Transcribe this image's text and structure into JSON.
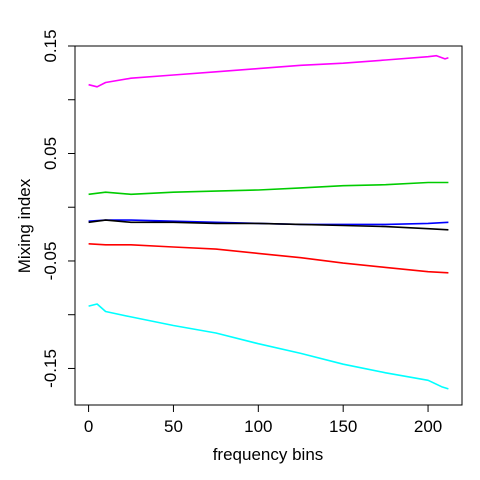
{
  "chart_data": {
    "type": "line",
    "title": "",
    "xlabel": "frequency bins",
    "ylabel": "Mixing index",
    "xlim": [
      -8,
      220
    ],
    "ylim": [
      -0.184,
      0.15
    ],
    "x_ticks": [
      0,
      50,
      100,
      150,
      200
    ],
    "x_tick_labels": [
      "0",
      "50",
      "100",
      "150",
      "200"
    ],
    "y_ticks": [
      0.15,
      0.1,
      0.05,
      0,
      -0.05,
      -0.1,
      -0.15
    ],
    "y_tick_labels": [
      "0.15",
      "",
      "0.05",
      "",
      "-0.05",
      "",
      "-0.15"
    ],
    "grid": false,
    "legend": "none",
    "series": [
      {
        "color": "#ff00ff",
        "x": [
          0,
          5,
          10,
          25,
          50,
          75,
          100,
          125,
          150,
          175,
          200,
          205,
          210,
          212
        ],
        "y": [
          0.114,
          0.112,
          0.116,
          0.12,
          0.123,
          0.126,
          0.129,
          0.132,
          0.134,
          0.137,
          0.14,
          0.141,
          0.138,
          0.139
        ]
      },
      {
        "color": "#00cc00",
        "x": [
          0,
          10,
          25,
          50,
          75,
          100,
          125,
          150,
          175,
          200,
          212
        ],
        "y": [
          0.012,
          0.014,
          0.012,
          0.014,
          0.015,
          0.016,
          0.018,
          0.02,
          0.021,
          0.023,
          0.023
        ]
      },
      {
        "color": "#0000ff",
        "x": [
          0,
          10,
          25,
          50,
          75,
          100,
          125,
          150,
          175,
          200,
          212
        ],
        "y": [
          -0.013,
          -0.012,
          -0.012,
          -0.013,
          -0.014,
          -0.015,
          -0.016,
          -0.016,
          -0.016,
          -0.015,
          -0.014
        ]
      },
      {
        "color": "#000000",
        "x": [
          0,
          10,
          25,
          50,
          75,
          100,
          125,
          150,
          175,
          200,
          212
        ],
        "y": [
          -0.014,
          -0.012,
          -0.014,
          -0.014,
          -0.015,
          -0.015,
          -0.016,
          -0.017,
          -0.018,
          -0.02,
          -0.021
        ]
      },
      {
        "color": "#ff0000",
        "x": [
          0,
          10,
          25,
          50,
          75,
          100,
          125,
          150,
          175,
          200,
          212
        ],
        "y": [
          -0.034,
          -0.035,
          -0.035,
          -0.037,
          -0.039,
          -0.043,
          -0.047,
          -0.052,
          -0.056,
          -0.06,
          -0.061
        ]
      },
      {
        "color": "#00ffff",
        "x": [
          0,
          5,
          10,
          25,
          50,
          75,
          100,
          125,
          150,
          175,
          200,
          208,
          212
        ],
        "y": [
          -0.092,
          -0.09,
          -0.097,
          -0.102,
          -0.11,
          -0.117,
          -0.127,
          -0.136,
          -0.146,
          -0.154,
          -0.161,
          -0.167,
          -0.169
        ]
      }
    ]
  }
}
